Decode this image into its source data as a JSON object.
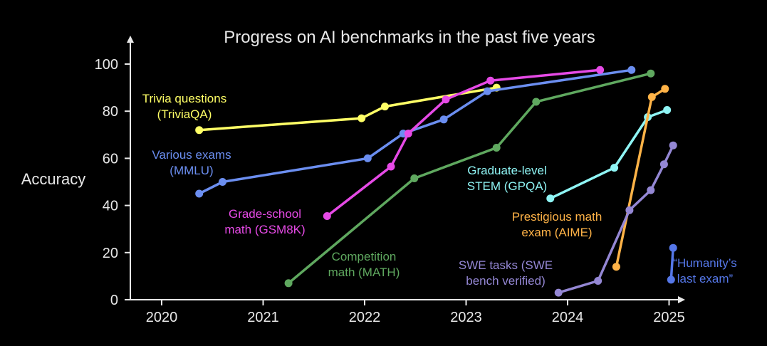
{
  "chart_data": {
    "type": "line",
    "title": "Progress on AI benchmarks in the past five years",
    "xlabel": "",
    "ylabel": "Accuracy",
    "xlim": [
      2019.85,
      2025.2
    ],
    "ylim": [
      0,
      100
    ],
    "x_ticks": [
      "2020",
      "2021",
      "2022",
      "2023",
      "2024",
      "2025"
    ],
    "y_ticks": [
      "0",
      "20",
      "40",
      "60",
      "80",
      "100"
    ],
    "grid": false,
    "legend": "none (series labeled inline)",
    "series": [
      {
        "name": "Trivia questions (TriviaQA)",
        "label_lines": [
          "Trivia questions",
          "(TriviaQA)"
        ],
        "color": "#ffff66",
        "x": [
          2020.37,
          2021.97,
          2022.2,
          2023.3
        ],
        "y": [
          72,
          77,
          82,
          90
        ]
      },
      {
        "name": "Various exams (MMLU)",
        "label_lines": [
          "Various exams",
          "(MMLU)"
        ],
        "color": "#6b8ef0",
        "x": [
          2020.37,
          2020.6,
          2022.03,
          2022.38,
          2022.78,
          2023.21,
          2024.63
        ],
        "y": [
          45,
          50,
          60,
          70.5,
          76.5,
          88.5,
          97.5
        ]
      },
      {
        "name": "Grade-school math (GSM8K)",
        "label_lines": [
          "Grade-school",
          "math (GSM8K)"
        ],
        "color": "#e64ae6",
        "x": [
          2021.63,
          2022.26,
          2022.43,
          2022.8,
          2023.24,
          2024.32
        ],
        "y": [
          35.5,
          56.5,
          70.5,
          85,
          93,
          97.5
        ]
      },
      {
        "name": "Competition math (MATH)",
        "label_lines": [
          "Competition",
          "math (MATH)"
        ],
        "color": "#5fa85f",
        "x": [
          2021.25,
          2022.49,
          2023.3,
          2023.69,
          2024.82
        ],
        "y": [
          7,
          51.5,
          64.5,
          84,
          96
        ]
      },
      {
        "name": "Graduate-level STEM (GPQA)",
        "label_lines": [
          "Graduate-level",
          "STEM (GPQA)"
        ],
        "color": "#8ff5f5",
        "x": [
          2023.83,
          2024.46,
          2024.79,
          2024.98
        ],
        "y": [
          43,
          56,
          77.5,
          80.5
        ]
      },
      {
        "name": "Prestigious math exam (AIME)",
        "label_lines": [
          "Prestigious math",
          "exam (AIME)"
        ],
        "color": "#ffb347",
        "x": [
          2024.48,
          2024.83,
          2024.96
        ],
        "y": [
          14,
          86,
          89.5
        ]
      },
      {
        "name": "SWE tasks (SWE bench verified)",
        "label_lines": [
          "SWE tasks (SWE",
          "bench verified)"
        ],
        "color": "#9487d4",
        "x": [
          2023.91,
          2024.3,
          2024.61,
          2024.82,
          2024.95,
          2025.04
        ],
        "y": [
          3,
          8,
          38,
          46.5,
          57.5,
          65.5
        ]
      },
      {
        "name": "“Humanity’s last exam”",
        "label_lines": [
          "“Humanity’s",
          "last exam”"
        ],
        "color": "#5577e8",
        "x": [
          2025.02,
          2025.04
        ],
        "y": [
          8.5,
          22
        ]
      }
    ]
  },
  "colors": {
    "background": "#000000",
    "text": "#e8e8e8",
    "axis": "#e8e8e8"
  }
}
